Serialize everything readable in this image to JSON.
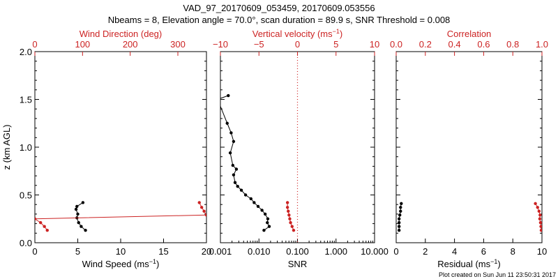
{
  "title_line1": "VAD_97_20170609_053459, 20170609.053556",
  "title_line2": "Nbeams = 8, Elevation angle = 70.0°, scan duration = 89.9 s, SNR Threshold = 0.008",
  "footer": "Plot created on Sun Jun 11 23:50:31 2017",
  "colors": {
    "primary": "#000000",
    "accent": "#cc2222"
  },
  "chart_data": [
    {
      "type": "line",
      "panel": "left",
      "ylabel": "z (km AGL)",
      "ylim": [
        0,
        2
      ],
      "yticks": [
        "0.0",
        "0.5",
        "1.0",
        "1.5",
        "2.0"
      ],
      "bottom_axis": {
        "label": "Wind Speed (ms",
        "label_sup": "−1",
        "label_close": ")",
        "range": [
          0,
          20
        ],
        "ticks": [
          0,
          5,
          10,
          15,
          20
        ],
        "tick_labels": [
          "0",
          "5",
          "10",
          "15",
          "20"
        ]
      },
      "top_axis": {
        "label": "Wind Direction (deg)",
        "range": [
          0,
          360
        ],
        "ticks": [
          0,
          100,
          200,
          300
        ],
        "tick_labels": [
          "0",
          "100",
          "200",
          "300"
        ]
      },
      "series": [
        {
          "name": "Wind Speed",
          "color": "#000000",
          "axis": "bottom",
          "x": [
            5.9,
            5.4,
            5.1,
            4.9,
            5.0,
            4.8,
            4.9,
            5.6
          ],
          "z": [
            0.13,
            0.17,
            0.21,
            0.26,
            0.3,
            0.35,
            0.38,
            0.42
          ]
        },
        {
          "name": "Wind Direction",
          "color": "#cc2222",
          "axis": "top",
          "x": [
            26,
            20,
            12,
            0,
            360,
            355,
            350,
            345
          ],
          "z": [
            0.13,
            0.17,
            0.21,
            0.25,
            0.29,
            0.33,
            0.37,
            0.42
          ]
        }
      ]
    },
    {
      "type": "line",
      "panel": "middle",
      "bottom_axis": {
        "label": "SNR",
        "scale": "log",
        "range": [
          0.001,
          10
        ],
        "ticks": [
          0.001,
          0.01,
          0.1,
          1,
          10
        ],
        "tick_labels": [
          "0.001",
          "0.010",
          "0.100",
          "1.000",
          "10.000"
        ]
      },
      "top_axis": {
        "label": "Vertical velocity (ms",
        "label_sup": "−1",
        "label_close": ")",
        "range": [
          -10,
          10
        ],
        "ticks": [
          -10,
          -5,
          0,
          5,
          10
        ],
        "tick_labels": [
          "−10",
          "−5",
          "0",
          "5",
          "10"
        ]
      },
      "series": [
        {
          "name": "SNR",
          "color": "#000000",
          "axis": "bottom",
          "x": [
            0.0135,
            0.0185,
            0.0165,
            0.017,
            0.0145,
            0.012,
            0.0095,
            0.0075,
            0.0062,
            0.0045,
            0.0035,
            0.0028,
            0.0024,
            0.0022,
            0.0026,
            0.0021,
            0.0018,
            0.0022,
            0.0019,
            0.0015,
            0.00085,
            0.0016
          ],
          "z": [
            0.13,
            0.17,
            0.21,
            0.25,
            0.3,
            0.34,
            0.38,
            0.42,
            0.46,
            0.5,
            0.55,
            0.59,
            0.63,
            0.71,
            0.77,
            0.81,
            0.94,
            1.06,
            1.15,
            1.25,
            1.5,
            1.54
          ]
        },
        {
          "name": "Vertical velocity",
          "color": "#cc2222",
          "axis": "top",
          "x": [
            -0.5,
            -0.7,
            -0.9,
            -1.0,
            -1.1,
            -1.2,
            -1.3,
            -1.3
          ],
          "z": [
            0.13,
            0.17,
            0.21,
            0.25,
            0.29,
            0.33,
            0.37,
            0.42
          ]
        }
      ],
      "reference_line": {
        "axis": "top",
        "value": 0,
        "style": "dotted",
        "color": "#cc2222"
      }
    },
    {
      "type": "line",
      "panel": "right",
      "bottom_axis": {
        "label": "Residual (ms",
        "label_sup": "−1",
        "label_close": ")",
        "range": [
          0,
          10
        ],
        "ticks": [
          0,
          2,
          4,
          6,
          8,
          10
        ],
        "tick_labels": [
          "0",
          "2",
          "4",
          "6",
          "8",
          "10"
        ]
      },
      "top_axis": {
        "label": "Correlation",
        "range": [
          0,
          1
        ],
        "ticks": [
          0,
          0.2,
          0.4,
          0.6,
          0.8,
          1.0
        ],
        "tick_labels": [
          "0.0",
          "0.2",
          "0.4",
          "0.6",
          "0.8",
          "1.0"
        ]
      },
      "series": [
        {
          "name": "Residual",
          "color": "#000000",
          "axis": "bottom",
          "x": [
            0.2,
            0.2,
            0.2,
            0.2,
            0.25,
            0.3,
            0.3,
            0.35
          ],
          "z": [
            0.13,
            0.17,
            0.21,
            0.25,
            0.29,
            0.33,
            0.37,
            0.41
          ]
        },
        {
          "name": "Correlation",
          "color": "#cc2222",
          "axis": "top",
          "x": [
            0.995,
            0.993,
            0.99,
            0.985,
            0.987,
            0.98,
            0.97,
            0.955
          ],
          "z": [
            0.13,
            0.17,
            0.21,
            0.25,
            0.29,
            0.33,
            0.37,
            0.41
          ]
        }
      ]
    }
  ]
}
